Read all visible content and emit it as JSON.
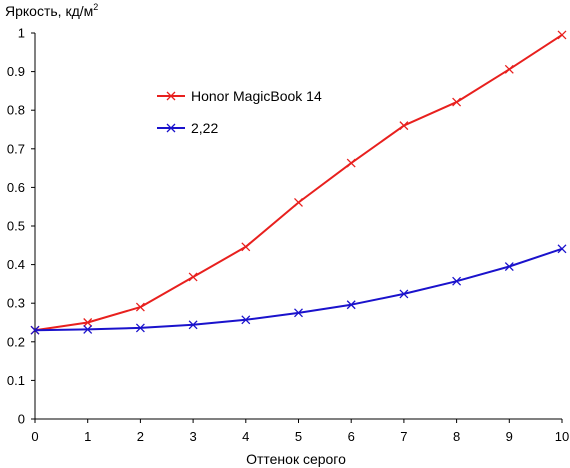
{
  "chart_data": {
    "type": "line",
    "title": "",
    "ylabel": "Яркость, кд/м",
    "ylabel_superscript": "2",
    "xlabel": "Оттенок серого",
    "xlim": [
      0,
      10
    ],
    "ylim": [
      0,
      1
    ],
    "x_ticks": [
      "0",
      "1",
      "2",
      "3",
      "4",
      "5",
      "6",
      "7",
      "8",
      "9",
      "10"
    ],
    "y_ticks": [
      "0",
      "0.1",
      "0.2",
      "0.3",
      "0.4",
      "0.5",
      "0.6",
      "0.7",
      "0.8",
      "0.9",
      "1"
    ],
    "grid": false,
    "legend_position": "upper-left inside plot",
    "x": [
      0,
      1,
      2,
      3,
      4,
      5,
      6,
      7,
      8,
      9,
      10
    ],
    "series": [
      {
        "name": "Honor MagicBook 14",
        "color": "#e8201e",
        "marker": "x",
        "values": [
          0.23,
          0.25,
          0.29,
          0.368,
          0.446,
          0.561,
          0.663,
          0.76,
          0.821,
          0.906,
          0.995
        ]
      },
      {
        "name": "2,22",
        "color": "#1a12cc",
        "marker": "x",
        "values": [
          0.23,
          0.232,
          0.236,
          0.244,
          0.257,
          0.275,
          0.296,
          0.324,
          0.357,
          0.395,
          0.441
        ]
      }
    ]
  }
}
